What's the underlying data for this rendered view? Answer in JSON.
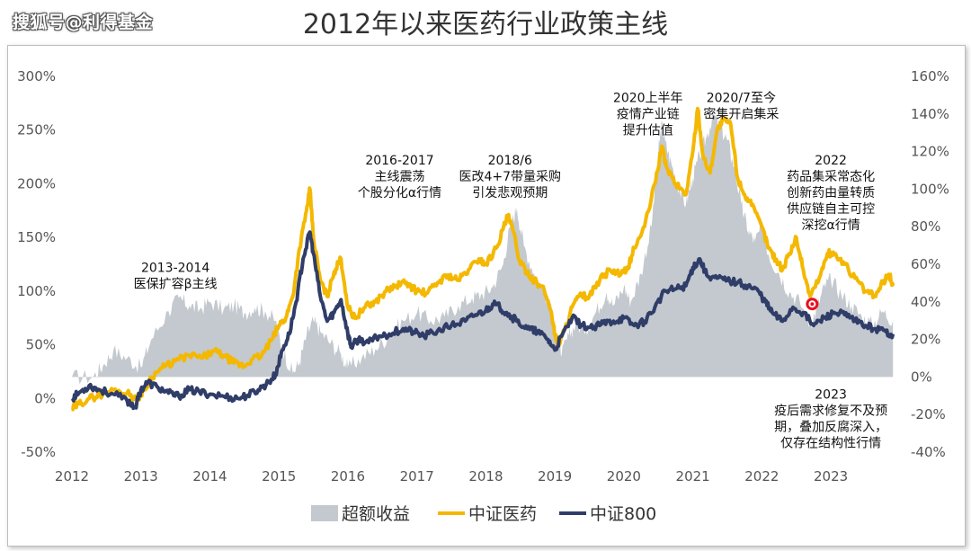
{
  "watermark": "搜狐号@利得基金",
  "colors": {
    "excess": "#c3c9cf",
    "pharma": "#f4b800",
    "csi800": "#2f3d68",
    "marker": "#e8101e",
    "text": "#333333"
  },
  "chart_data": {
    "type": "line",
    "title": "2012年以来医药行业政策主线",
    "x_ticks": [
      "2012",
      "2013",
      "2014",
      "2015",
      "2016",
      "2017",
      "2018",
      "2019",
      "2020",
      "2021",
      "2022",
      "2023"
    ],
    "left_axis": {
      "ticks": [
        "300%",
        "250%",
        "200%",
        "150%",
        "100%",
        "50%",
        "0%",
        "-50%"
      ],
      "ylim": [
        -50,
        300
      ]
    },
    "right_axis": {
      "ticks": [
        "160%",
        "140%",
        "120%",
        "100%",
        "80%",
        "60%",
        "40%",
        "20%",
        "0%",
        "-20%",
        "-40%"
      ],
      "ylim": [
        -40,
        160
      ]
    },
    "legend": {
      "placement": "bottom-center"
    },
    "series": [
      {
        "name": "超额收益",
        "type": "area",
        "axis": "right",
        "points": [
          [
            2012.0,
            0
          ],
          [
            2012.3,
            0
          ],
          [
            2012.45,
            6
          ],
          [
            2012.6,
            14
          ],
          [
            2012.8,
            10
          ],
          [
            2013.0,
            5
          ],
          [
            2013.15,
            20
          ],
          [
            2013.4,
            35
          ],
          [
            2013.55,
            42
          ],
          [
            2013.7,
            38
          ],
          [
            2013.85,
            36
          ],
          [
            2014.0,
            40
          ],
          [
            2014.2,
            36
          ],
          [
            2014.35,
            38
          ],
          [
            2014.5,
            34
          ],
          [
            2014.65,
            37
          ],
          [
            2014.8,
            35
          ],
          [
            2014.95,
            30
          ],
          [
            2015.05,
            15
          ],
          [
            2015.2,
            2
          ],
          [
            2015.3,
            8
          ],
          [
            2015.4,
            22
          ],
          [
            2015.5,
            30
          ],
          [
            2015.6,
            24
          ],
          [
            2015.75,
            18
          ],
          [
            2015.9,
            12
          ],
          [
            2016.0,
            5
          ],
          [
            2016.2,
            10
          ],
          [
            2016.4,
            15
          ],
          [
            2016.6,
            22
          ],
          [
            2016.8,
            30
          ],
          [
            2017.0,
            34
          ],
          [
            2017.2,
            30
          ],
          [
            2017.4,
            32
          ],
          [
            2017.6,
            38
          ],
          [
            2017.8,
            42
          ],
          [
            2017.95,
            44
          ],
          [
            2018.1,
            48
          ],
          [
            2018.25,
            60
          ],
          [
            2018.35,
            80
          ],
          [
            2018.45,
            90
          ],
          [
            2018.55,
            70
          ],
          [
            2018.7,
            55
          ],
          [
            2018.85,
            45
          ],
          [
            2019.0,
            30
          ],
          [
            2019.1,
            12
          ],
          [
            2019.2,
            22
          ],
          [
            2019.3,
            28
          ],
          [
            2019.45,
            25
          ],
          [
            2019.6,
            35
          ],
          [
            2019.75,
            45
          ],
          [
            2019.85,
            38
          ],
          [
            2020.0,
            48
          ],
          [
            2020.1,
            40
          ],
          [
            2020.25,
            55
          ],
          [
            2020.4,
            80
          ],
          [
            2020.5,
            120
          ],
          [
            2020.55,
            135
          ],
          [
            2020.6,
            125
          ],
          [
            2020.7,
            112
          ],
          [
            2020.8,
            100
          ],
          [
            2020.9,
            92
          ],
          [
            2021.0,
            106
          ],
          [
            2021.1,
            118
          ],
          [
            2021.2,
            128
          ],
          [
            2021.3,
            140
          ],
          [
            2021.4,
            132
          ],
          [
            2021.5,
            126
          ],
          [
            2021.6,
            112
          ],
          [
            2021.7,
            92
          ],
          [
            2021.8,
            78
          ],
          [
            2021.9,
            72
          ],
          [
            2022.0,
            80
          ],
          [
            2022.1,
            65
          ],
          [
            2022.25,
            55
          ],
          [
            2022.4,
            45
          ],
          [
            2022.55,
            40
          ],
          [
            2022.7,
            28
          ],
          [
            2022.8,
            36
          ],
          [
            2022.9,
            48
          ],
          [
            2023.0,
            52
          ],
          [
            2023.15,
            44
          ],
          [
            2023.3,
            38
          ],
          [
            2023.45,
            32
          ],
          [
            2023.6,
            28
          ],
          [
            2023.75,
            35
          ],
          [
            2023.9,
            30
          ]
        ]
      },
      {
        "name": "中证医药",
        "type": "line",
        "axis": "left",
        "points": [
          [
            2012.0,
            -10
          ],
          [
            2012.1,
            -5
          ],
          [
            2012.25,
            0
          ],
          [
            2012.4,
            3
          ],
          [
            2012.6,
            8
          ],
          [
            2012.8,
            5
          ],
          [
            2012.95,
            0
          ],
          [
            2013.05,
            8
          ],
          [
            2013.15,
            20
          ],
          [
            2013.3,
            28
          ],
          [
            2013.5,
            35
          ],
          [
            2013.7,
            40
          ],
          [
            2013.9,
            38
          ],
          [
            2014.05,
            44
          ],
          [
            2014.2,
            40
          ],
          [
            2014.35,
            33
          ],
          [
            2014.5,
            30
          ],
          [
            2014.6,
            36
          ],
          [
            2014.75,
            40
          ],
          [
            2014.9,
            55
          ],
          [
            2015.0,
            68
          ],
          [
            2015.1,
            75
          ],
          [
            2015.2,
            95
          ],
          [
            2015.3,
            140
          ],
          [
            2015.4,
            175
          ],
          [
            2015.45,
            195
          ],
          [
            2015.5,
            150
          ],
          [
            2015.6,
            110
          ],
          [
            2015.7,
            95
          ],
          [
            2015.8,
            118
          ],
          [
            2015.9,
            130
          ],
          [
            2016.0,
            85
          ],
          [
            2016.1,
            75
          ],
          [
            2016.25,
            85
          ],
          [
            2016.4,
            90
          ],
          [
            2016.55,
            100
          ],
          [
            2016.7,
            105
          ],
          [
            2016.85,
            108
          ],
          [
            2017.0,
            100
          ],
          [
            2017.15,
            98
          ],
          [
            2017.3,
            108
          ],
          [
            2017.45,
            115
          ],
          [
            2017.6,
            110
          ],
          [
            2017.75,
            120
          ],
          [
            2017.9,
            130
          ],
          [
            2018.0,
            125
          ],
          [
            2018.15,
            140
          ],
          [
            2018.25,
            158
          ],
          [
            2018.32,
            170
          ],
          [
            2018.4,
            155
          ],
          [
            2018.5,
            125
          ],
          [
            2018.6,
            118
          ],
          [
            2018.7,
            110
          ],
          [
            2018.85,
            100
          ],
          [
            2018.95,
            80
          ],
          [
            2019.0,
            60
          ],
          [
            2019.05,
            50
          ],
          [
            2019.15,
            65
          ],
          [
            2019.25,
            85
          ],
          [
            2019.35,
            95
          ],
          [
            2019.5,
            95
          ],
          [
            2019.65,
            110
          ],
          [
            2019.8,
            120
          ],
          [
            2019.95,
            115
          ],
          [
            2020.05,
            120
          ],
          [
            2020.15,
            140
          ],
          [
            2020.3,
            160
          ],
          [
            2020.45,
            200
          ],
          [
            2020.55,
            235
          ],
          [
            2020.62,
            215
          ],
          [
            2020.75,
            200
          ],
          [
            2020.9,
            190
          ],
          [
            2021.0,
            230
          ],
          [
            2021.07,
            270
          ],
          [
            2021.15,
            225
          ],
          [
            2021.25,
            210
          ],
          [
            2021.35,
            250
          ],
          [
            2021.45,
            260
          ],
          [
            2021.55,
            255
          ],
          [
            2021.65,
            205
          ],
          [
            2021.75,
            190
          ],
          [
            2021.85,
            180
          ],
          [
            2022.0,
            160
          ],
          [
            2022.1,
            140
          ],
          [
            2022.2,
            130
          ],
          [
            2022.3,
            120
          ],
          [
            2022.4,
            135
          ],
          [
            2022.5,
            150
          ],
          [
            2022.6,
            120
          ],
          [
            2022.7,
            95
          ],
          [
            2022.85,
            115
          ],
          [
            2022.95,
            135
          ],
          [
            2023.05,
            135
          ],
          [
            2023.2,
            125
          ],
          [
            2023.35,
            112
          ],
          [
            2023.5,
            100
          ],
          [
            2023.65,
            95
          ],
          [
            2023.75,
            108
          ],
          [
            2023.85,
            115
          ],
          [
            2023.9,
            105
          ]
        ]
      },
      {
        "name": "中证800",
        "type": "line",
        "axis": "left",
        "points": [
          [
            2012.0,
            0
          ],
          [
            2012.1,
            5
          ],
          [
            2012.25,
            12
          ],
          [
            2012.4,
            8
          ],
          [
            2012.6,
            4
          ],
          [
            2012.8,
            -2
          ],
          [
            2012.92,
            -8
          ],
          [
            2013.0,
            8
          ],
          [
            2013.1,
            15
          ],
          [
            2013.25,
            10
          ],
          [
            2013.4,
            5
          ],
          [
            2013.55,
            2
          ],
          [
            2013.7,
            8
          ],
          [
            2013.85,
            6
          ],
          [
            2014.0,
            4
          ],
          [
            2014.2,
            2
          ],
          [
            2014.4,
            0
          ],
          [
            2014.55,
            3
          ],
          [
            2014.7,
            8
          ],
          [
            2014.85,
            15
          ],
          [
            2014.95,
            22
          ],
          [
            2015.05,
            45
          ],
          [
            2015.15,
            60
          ],
          [
            2015.25,
            90
          ],
          [
            2015.35,
            130
          ],
          [
            2015.45,
            155
          ],
          [
            2015.5,
            135
          ],
          [
            2015.6,
            95
          ],
          [
            2015.7,
            72
          ],
          [
            2015.8,
            80
          ],
          [
            2015.9,
            92
          ],
          [
            2016.0,
            60
          ],
          [
            2016.05,
            48
          ],
          [
            2016.15,
            55
          ],
          [
            2016.3,
            52
          ],
          [
            2016.45,
            58
          ],
          [
            2016.6,
            60
          ],
          [
            2016.8,
            65
          ],
          [
            2016.95,
            62
          ],
          [
            2017.1,
            58
          ],
          [
            2017.3,
            63
          ],
          [
            2017.5,
            68
          ],
          [
            2017.7,
            72
          ],
          [
            2017.85,
            78
          ],
          [
            2018.0,
            82
          ],
          [
            2018.1,
            88
          ],
          [
            2018.2,
            85
          ],
          [
            2018.3,
            80
          ],
          [
            2018.45,
            72
          ],
          [
            2018.6,
            65
          ],
          [
            2018.75,
            62
          ],
          [
            2018.9,
            55
          ],
          [
            2019.0,
            45
          ],
          [
            2019.1,
            58
          ],
          [
            2019.25,
            75
          ],
          [
            2019.4,
            68
          ],
          [
            2019.55,
            65
          ],
          [
            2019.7,
            70
          ],
          [
            2019.85,
            72
          ],
          [
            2020.0,
            75
          ],
          [
            2020.15,
            68
          ],
          [
            2020.3,
            72
          ],
          [
            2020.45,
            85
          ],
          [
            2020.6,
            100
          ],
          [
            2020.75,
            102
          ],
          [
            2020.9,
            105
          ],
          [
            2021.0,
            122
          ],
          [
            2021.1,
            130
          ],
          [
            2021.2,
            115
          ],
          [
            2021.35,
            112
          ],
          [
            2021.5,
            110
          ],
          [
            2021.65,
            108
          ],
          [
            2021.8,
            105
          ],
          [
            2021.95,
            100
          ],
          [
            2022.05,
            90
          ],
          [
            2022.15,
            80
          ],
          [
            2022.3,
            72
          ],
          [
            2022.45,
            85
          ],
          [
            2022.6,
            80
          ],
          [
            2022.75,
            68
          ],
          [
            2022.9,
            75
          ],
          [
            2023.05,
            80
          ],
          [
            2023.2,
            78
          ],
          [
            2023.35,
            72
          ],
          [
            2023.5,
            68
          ],
          [
            2023.65,
            65
          ],
          [
            2023.8,
            62
          ],
          [
            2023.9,
            60
          ]
        ]
      }
    ],
    "annotations": [
      {
        "x": 2013.5,
        "y_left": 118,
        "lines": [
          "2013-2014",
          "医保扩容β主线"
        ]
      },
      {
        "x": 2016.75,
        "y_left": 218,
        "lines": [
          "2016-2017",
          "主线震荡",
          "个股分化α行情"
        ]
      },
      {
        "x": 2018.35,
        "y_left": 218,
        "lines": [
          "2018/6",
          "医改4+7带量采购",
          "引发悲观预期"
        ]
      },
      {
        "x": 2020.35,
        "y_left": 276,
        "lines": [
          "2020上半年",
          "疫情产业链",
          "提升估值"
        ]
      },
      {
        "x": 2021.7,
        "y_left": 276,
        "lines": [
          "2020/7至今",
          "密集开启集采"
        ]
      },
      {
        "x": 2023.0,
        "y_left": 218,
        "lines": [
          "2022",
          "药品集采常态化",
          "创新药由量转质",
          "供应链自主可控",
          "深挖α行情"
        ]
      },
      {
        "x": 2023.0,
        "y_left": 0,
        "lines": [
          "2023",
          "疫后需求修复不及预",
          "期，叠加反腐深入，",
          "仅存在结构性行情"
        ]
      }
    ],
    "marker": {
      "x": 2022.73,
      "y_left": 88
    }
  }
}
